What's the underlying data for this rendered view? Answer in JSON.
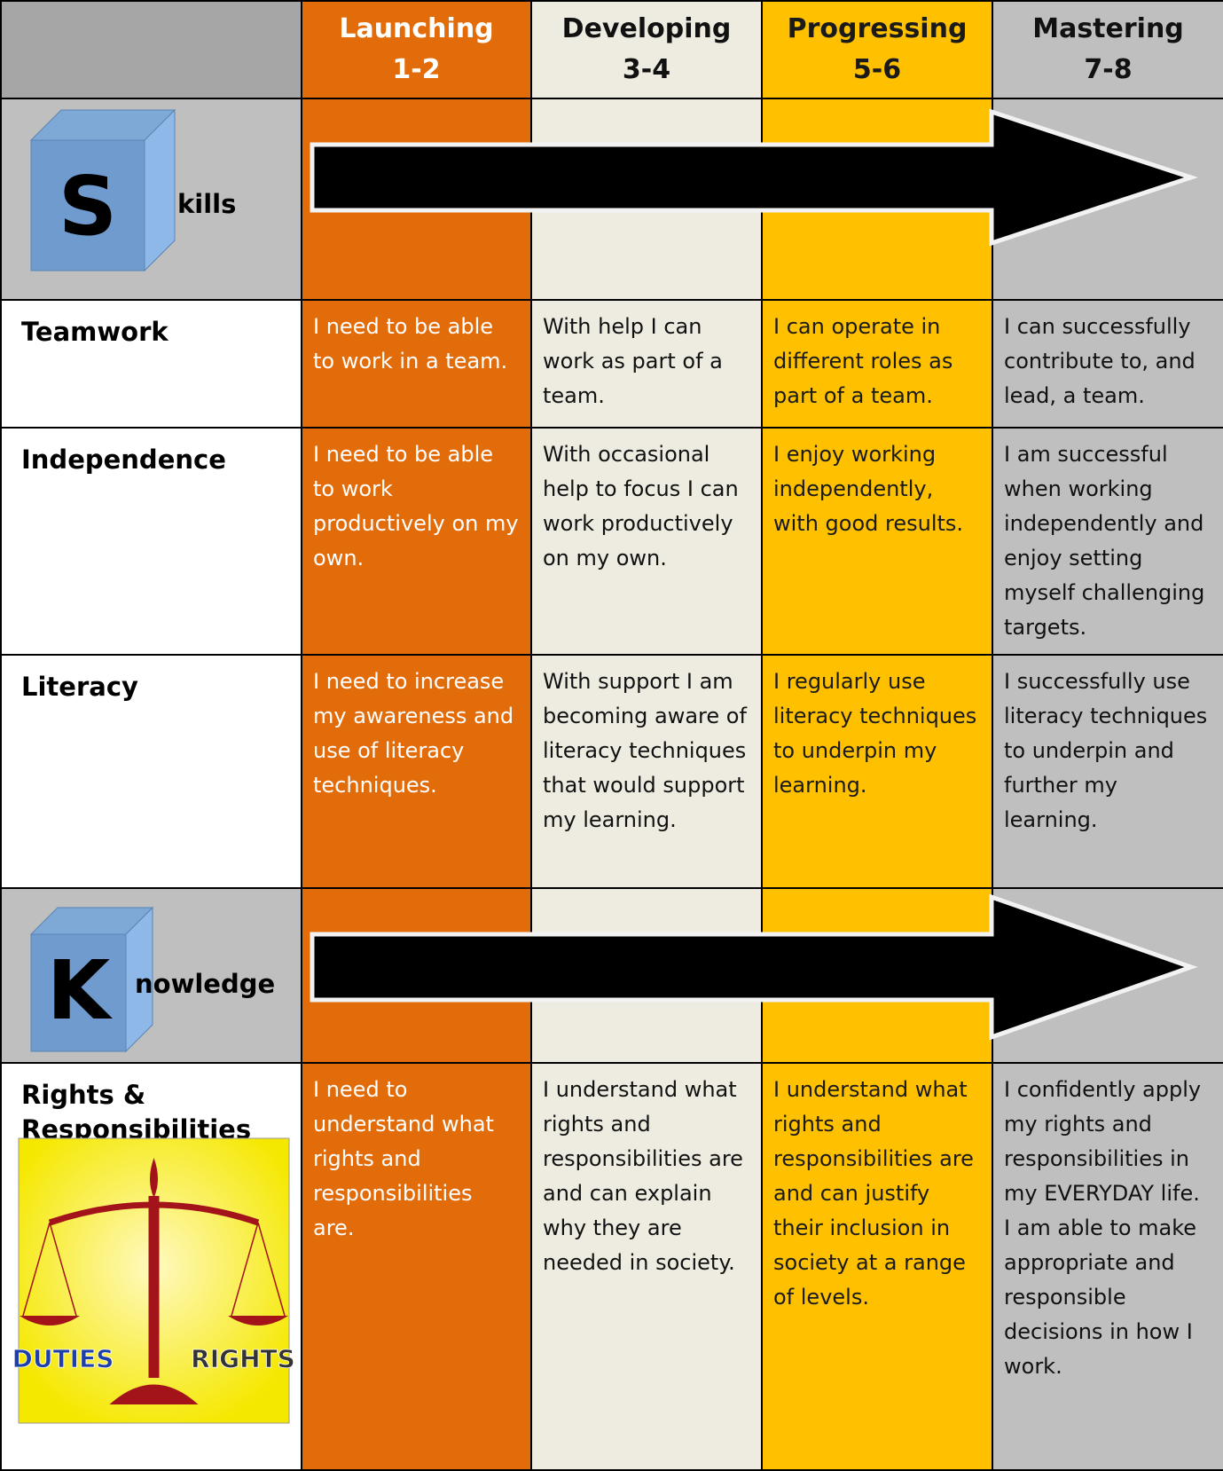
{
  "header_row": {
    "columns": [
      {
        "name": "Launching",
        "range": "1-2"
      },
      {
        "name": "Developing",
        "range": "3-4"
      },
      {
        "name": "Progressing",
        "range": "5-6"
      },
      {
        "name": "Mastering",
        "range": "7-8"
      }
    ]
  },
  "sections": [
    {
      "banner": {
        "letter": "S",
        "rest": "kills"
      },
      "rows": [
        {
          "label": "Teamwork",
          "cells": [
            "I need to be able to work in a team.",
            "With help I can work as part of a team.",
            "I can operate in different roles as part of a team.",
            "I can successfully contribute to, and lead, a team."
          ]
        },
        {
          "label": "Independence",
          "cells": [
            "I need to be able to work productively on my own.",
            "With occasional help to focus I can work productively on my own.",
            "I enjoy working independently, with good results.",
            "I am successful when working independently and enjoy setting myself challenging targets."
          ]
        },
        {
          "label": "Literacy",
          "cells": [
            "I need to increase my awareness and use of literacy techniques.",
            "With support I am becoming aware of literacy techniques that would support my learning.",
            "I regularly use literacy techniques to underpin my learning.",
            "I successfully use literacy techniques to underpin and further my learning."
          ]
        }
      ]
    },
    {
      "banner": {
        "letter": "K",
        "rest": "nowledge"
      },
      "rows": [
        {
          "label": "Rights & Responsibilities",
          "image_labels": [
            "DUTIES",
            "RIGHTS"
          ],
          "cells": [
            "I need to understand what rights and responsibilities are.",
            "I understand what rights and responsibilities are and can explain why they are needed in society.",
            "I understand what rights and responsibilities are and can justify their inclusion in society at a range of levels.",
            "I confidently apply my rights and responsibilities in my EVERYDAY life.\nI am able to make appropriate and responsible decisions in how I work."
          ]
        }
      ]
    }
  ]
}
